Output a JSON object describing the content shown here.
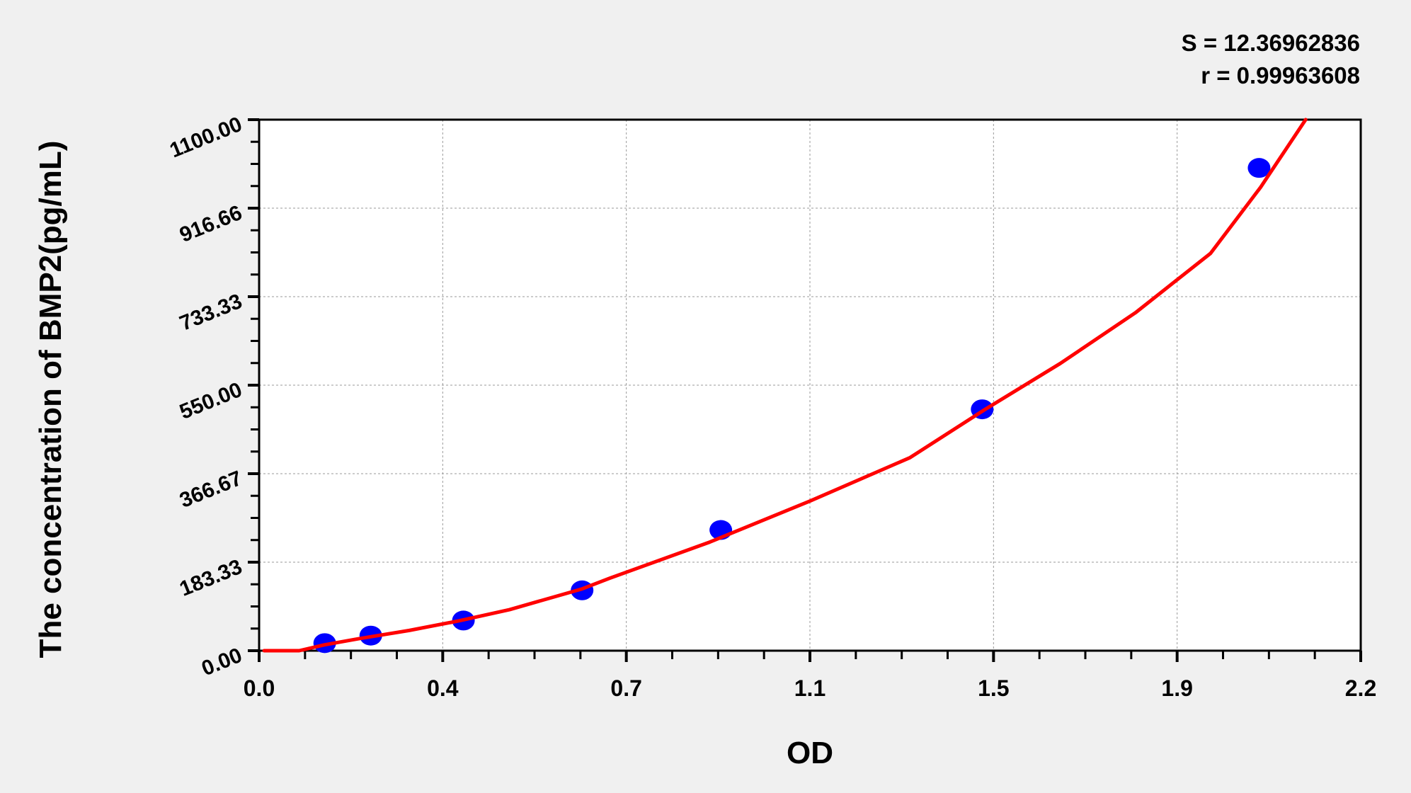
{
  "chart_data": {
    "type": "scatter",
    "xlabel": "OD",
    "ylabel": "The concentration of BMP2(pg/mL)",
    "xlim": [
      0,
      2.2
    ],
    "ylim": [
      0,
      1100
    ],
    "x_tick_labels": [
      "0.0",
      "0.4",
      "0.7",
      "1.1",
      "1.5",
      "1.9",
      "2.2"
    ],
    "y_tick_labels": [
      "0.00",
      "183.33",
      "366.67",
      "550.00",
      "733.33",
      "916.66",
      "1100.00"
    ],
    "grid": true,
    "points": {
      "x": [
        0.131,
        0.223,
        0.408,
        0.645,
        0.922,
        1.444,
        1.997
      ],
      "y": [
        15.6,
        31.25,
        62.5,
        125,
        250,
        500,
        1000
      ],
      "color": "#0000ff"
    },
    "fit_curve": {
      "color": "#ff0000",
      "x": [
        0.01,
        0.08,
        0.13,
        0.2,
        0.3,
        0.4,
        0.5,
        0.645,
        0.7,
        0.9,
        1.1,
        1.3,
        1.45,
        1.6,
        1.75,
        1.9,
        2.0,
        2.09
      ],
      "y": [
        0,
        0,
        12,
        25,
        42,
        62,
        85,
        128,
        150,
        225,
        310,
        400,
        500,
        595,
        700,
        823,
        960,
        1100
      ]
    },
    "annotations": {
      "s": "S = 12.36962836",
      "r": "r = 0.99963608"
    }
  }
}
